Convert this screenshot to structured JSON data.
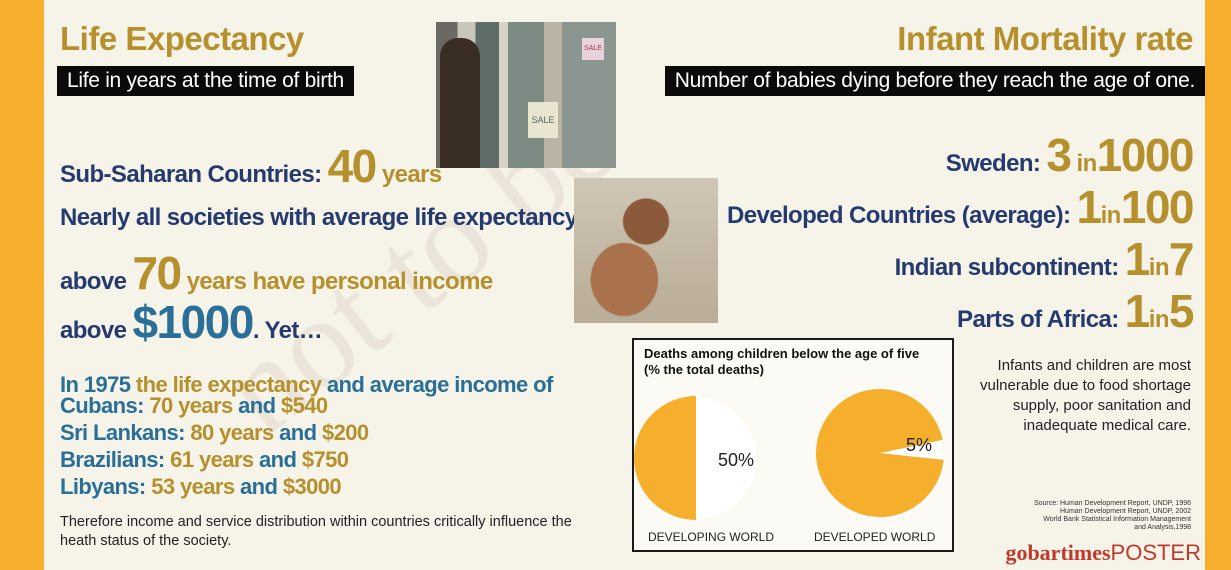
{
  "left": {
    "title": "Life Expectancy",
    "subtitle": "Life in years at the time of birth",
    "ssa_label": "Sub-Saharan Countries: ",
    "ssa_value": "40",
    "ssa_unit": " years",
    "line1": "Nearly all societies with average life expectancy",
    "line2_a": "above ",
    "line2_value": "70",
    "line2_b": " years have personal income",
    "line3_a": "above ",
    "line3_value": "$1000",
    "line3_b": ". Yet…",
    "intro_a": "In 1975 ",
    "intro_b": "the life expectancy",
    "intro_c": " and ",
    "intro_d": "average income of",
    "countries": [
      {
        "name": "Cubans: ",
        "years": "70 years",
        "and": " and ",
        "income": "$540"
      },
      {
        "name": "Sri Lankans: ",
        "years": "80 years",
        "and": " and ",
        "income": "$200"
      },
      {
        "name": "Brazilians: ",
        "years": "61 years",
        "and": " and ",
        "income": "$750"
      },
      {
        "name": "Libyans: ",
        "years": "53 years",
        "and": " and ",
        "income": "$3000"
      }
    ],
    "footnote": "Therefore income and service distribution within countries critically influence the heath status of the society."
  },
  "right": {
    "title": "Infant Mortality rate",
    "subtitle": "Number of babies dying before they reach the age of one.",
    "rates": [
      {
        "label": "Sweden: ",
        "num": "3",
        "in": " in",
        "den": "1000"
      },
      {
        "label": "Developed Countries (average): ",
        "num": "1",
        "in": "in",
        "den": "100"
      },
      {
        "label": "Indian subcontinent: ",
        "num": "1",
        "in": "in",
        "den": "7"
      },
      {
        "label": "Parts of Africa: ",
        "num": "1",
        "in": "in",
        "den": "5"
      }
    ],
    "note": "Infants and children are most vulnerable due to food shortage supply, poor sanitation and inadequate medical care.",
    "source": [
      "Source: Human Development Report, UNDP, 1996",
      "Human Development Report, UNDP, 2002",
      "World Bank Statistical Information Management",
      "and Analysis,1998"
    ]
  },
  "brand": {
    "part1": "gobar",
    "part2": "times",
    "part3": "POSTER"
  },
  "watermark": "not to be",
  "colors": {
    "accent_orange": "#f6ae2d",
    "gold_text": "#b5902c",
    "blue_text": "#2a6f97",
    "navy_text": "#253a6e"
  },
  "chart_data": {
    "type": "pie",
    "title": "Deaths among children below the age of five",
    "subtitle": "(% the total deaths)",
    "charts": [
      {
        "name": "DEVELOPING WORLD",
        "value": 50,
        "label": "50%"
      },
      {
        "name": "DEVELOPED WORLD",
        "value": 5,
        "label": "5%"
      }
    ]
  }
}
